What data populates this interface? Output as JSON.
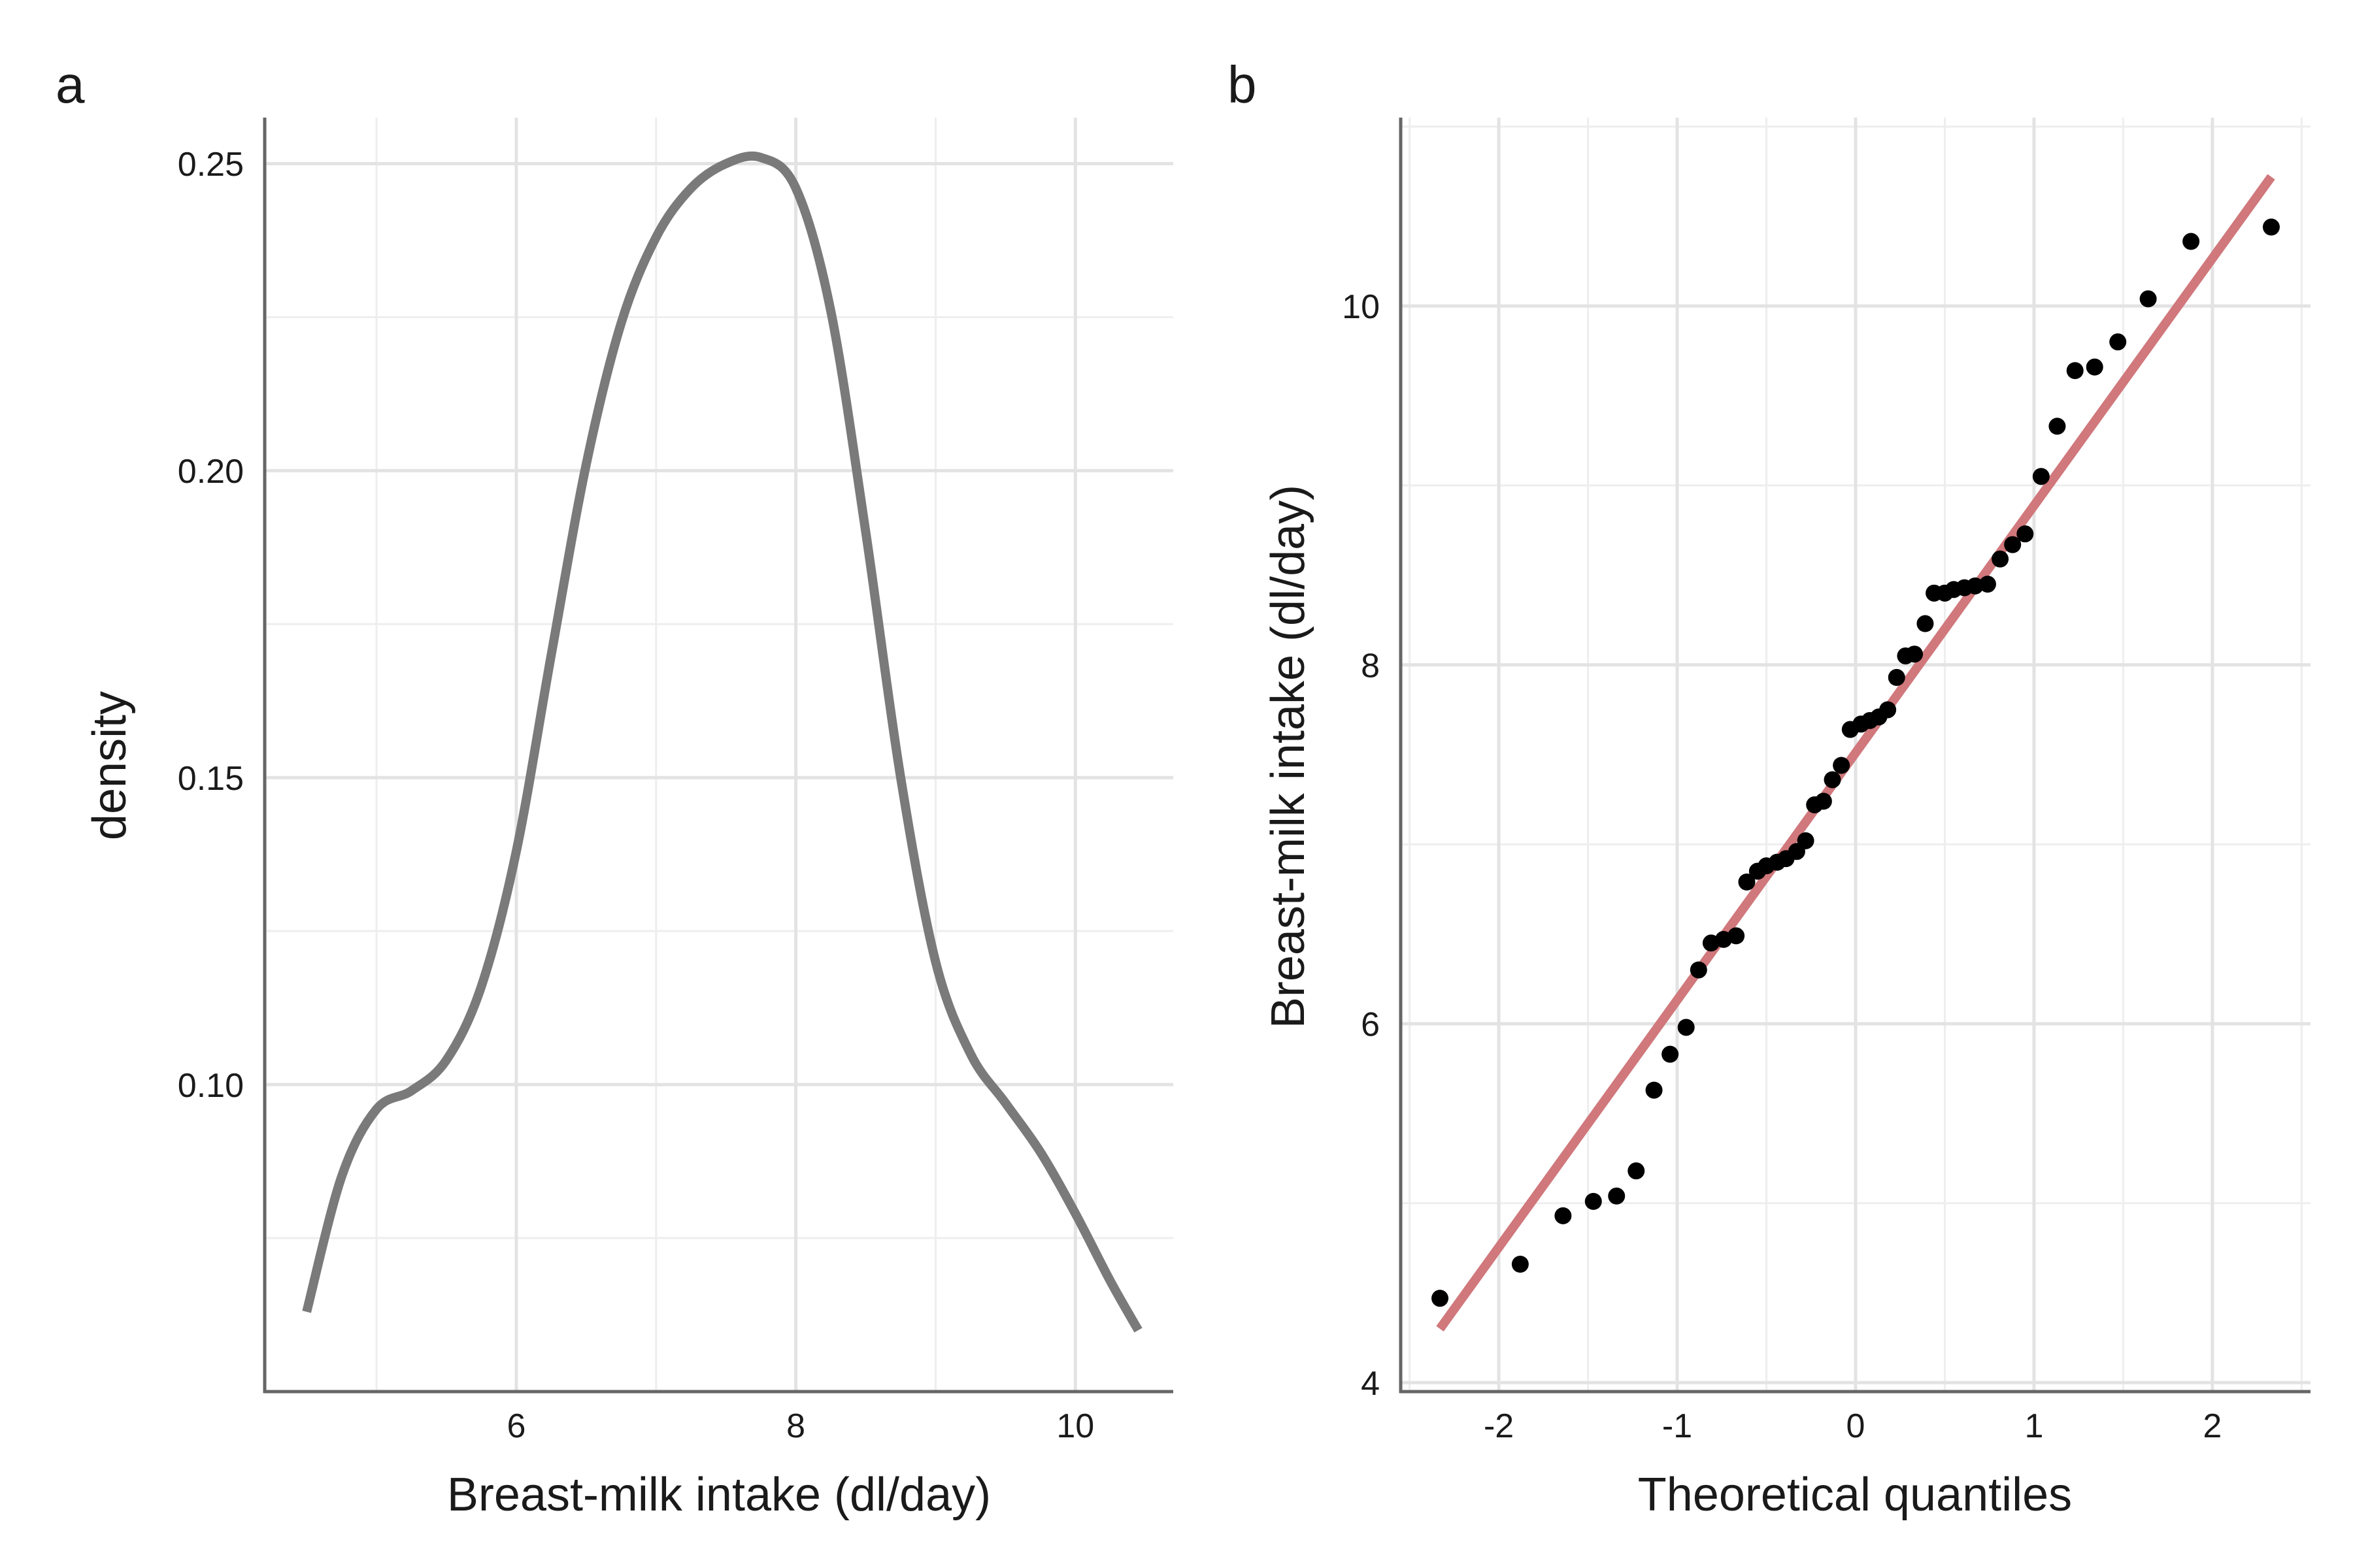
{
  "panels": {
    "a": {
      "tag": "a"
    },
    "b": {
      "tag": "b"
    }
  },
  "colors": {
    "density_line": "#7a7a7a",
    "qq_line": "#d0787c",
    "points": "#000000",
    "grid_major": "#e3e3e3",
    "grid_minor": "#eeeeee",
    "axis": "#666666"
  },
  "chart_data": [
    {
      "type": "line",
      "panel": "a",
      "xlabel": "Breast-milk intake (dl/day)",
      "ylabel": "density",
      "xlim": [
        4.2,
        10.7
      ],
      "ylim": [
        0.05,
        0.2575
      ],
      "x_ticks": [
        6,
        8,
        10
      ],
      "x_tick_labels": [
        "6",
        "8",
        "10"
      ],
      "y_ticks": [
        0.1,
        0.15,
        0.2,
        0.25
      ],
      "y_tick_labels": [
        "0.10",
        "0.15",
        "0.20",
        "0.25"
      ],
      "grid": true,
      "series": [
        {
          "x": [
            4.5,
            4.75,
            5.0,
            5.25,
            5.5,
            5.75,
            6.0,
            6.25,
            6.5,
            6.75,
            7.0,
            7.25,
            7.5,
            7.75,
            8.0,
            8.25,
            8.5,
            8.75,
            9.0,
            9.25,
            9.5,
            9.75,
            10.0,
            10.25,
            10.45
          ],
          "y": [
            0.063,
            0.085,
            0.096,
            0.099,
            0.104,
            0.116,
            0.138,
            0.17,
            0.201,
            0.224,
            0.238,
            0.246,
            0.25,
            0.251,
            0.246,
            0.226,
            0.19,
            0.15,
            0.12,
            0.105,
            0.097,
            0.089,
            0.079,
            0.068,
            0.06
          ]
        }
      ]
    },
    {
      "type": "scatter",
      "panel": "b",
      "xlabel": "Theoretical quantiles",
      "ylabel": "Breast-milk intake (dl/day)",
      "xlim": [
        -2.55,
        2.55
      ],
      "ylim": [
        3.95,
        11.05
      ],
      "x_ticks": [
        -2,
        -1,
        0,
        1,
        2
      ],
      "x_tick_labels": [
        "-2",
        "-1",
        "0",
        "1",
        "2"
      ],
      "y_ticks": [
        4,
        6,
        8,
        10
      ],
      "y_tick_labels": [
        "4",
        "6",
        "8",
        "10"
      ],
      "grid": true,
      "reference_line": {
        "x": [
          -2.33,
          2.33
        ],
        "y": [
          4.3,
          10.72
        ]
      },
      "series": [
        {
          "x": [
            -2.33,
            -1.88,
            -1.64,
            -1.47,
            -1.34,
            -1.23,
            -1.13,
            -1.04,
            -0.95,
            -0.88,
            -0.81,
            -0.74,
            -0.67,
            -0.61,
            -0.55,
            -0.5,
            -0.44,
            -0.39,
            -0.33,
            -0.28,
            -0.23,
            -0.18,
            -0.13,
            -0.08,
            -0.03,
            0.03,
            0.08,
            0.13,
            0.18,
            0.23,
            0.28,
            0.33,
            0.39,
            0.44,
            0.5,
            0.55,
            0.61,
            0.67,
            0.74,
            0.81,
            0.88,
            0.95,
            1.04,
            1.13,
            1.23,
            1.34,
            1.47,
            1.64,
            1.88,
            2.33
          ],
          "y": [
            4.47,
            4.66,
            4.93,
            5.01,
            5.04,
            5.18,
            5.63,
            5.83,
            5.98,
            6.3,
            6.45,
            6.47,
            6.49,
            6.79,
            6.85,
            6.88,
            6.9,
            6.92,
            6.96,
            7.02,
            7.22,
            7.24,
            7.36,
            7.44,
            7.64,
            7.67,
            7.69,
            7.71,
            7.75,
            7.93,
            8.05,
            8.06,
            8.23,
            8.4,
            8.4,
            8.42,
            8.43,
            8.44,
            8.45,
            8.59,
            8.67,
            8.73,
            9.05,
            9.33,
            9.64,
            9.66,
            9.8,
            10.04,
            10.36,
            10.44
          ]
        }
      ]
    }
  ]
}
